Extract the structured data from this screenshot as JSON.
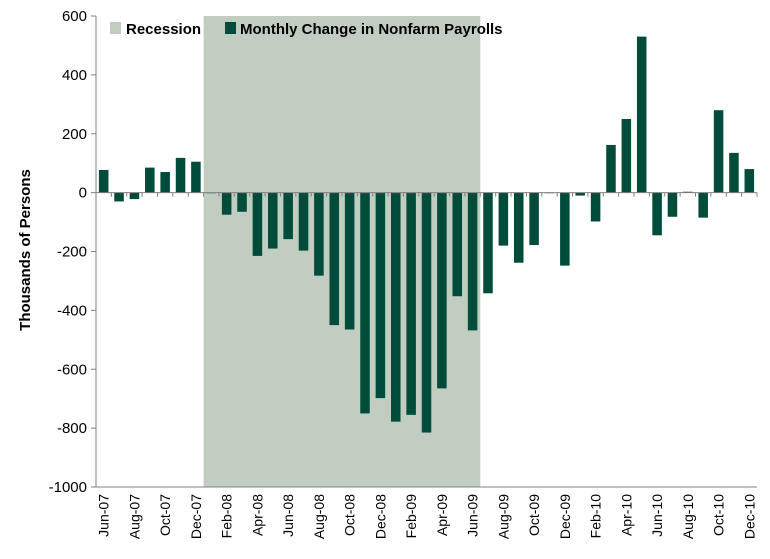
{
  "chart_data": {
    "type": "bar",
    "title": "",
    "xlabel": "",
    "ylabel": "Thousands of Persons",
    "ylim": [
      -1000,
      600
    ],
    "yticks": [
      600,
      400,
      200,
      0,
      -200,
      -400,
      -600,
      -800,
      -1000
    ],
    "yticks_labels": [
      "600",
      "400",
      "200",
      "0",
      "-200",
      "-400",
      "-600",
      "-800",
      "-1000"
    ],
    "categories": [
      "Jun-07",
      "Jul-07",
      "Aug-07",
      "Sep-07",
      "Oct-07",
      "Nov-07",
      "Dec-07",
      "Jan-08",
      "Feb-08",
      "Mar-08",
      "Apr-08",
      "May-08",
      "Jun-08",
      "Jul-08",
      "Aug-08",
      "Sep-08",
      "Oct-08",
      "Nov-08",
      "Dec-08",
      "Jan-09",
      "Feb-09",
      "Mar-09",
      "Apr-09",
      "May-09",
      "Jun-09",
      "Jul-09",
      "Aug-09",
      "Sep-09",
      "Oct-09",
      "Nov-09",
      "Dec-09",
      "Jan-10",
      "Feb-10",
      "Mar-10",
      "Apr-10",
      "May-10",
      "Jun-10",
      "Jul-10",
      "Aug-10",
      "Sep-10",
      "Oct-10",
      "Nov-10",
      "Dec-10"
    ],
    "xtick_labels": [
      "Jun-07",
      "Aug-07",
      "Oct-07",
      "Dec-07",
      "Feb-08",
      "Apr-08",
      "Jun-08",
      "Aug-08",
      "Oct-08",
      "Dec-08",
      "Feb-09",
      "Apr-09",
      "Jun-09",
      "Aug-09",
      "Oct-09",
      "Dec-09",
      "Feb-10",
      "Apr-10",
      "Jun-10",
      "Aug-10",
      "Oct-10",
      "Dec-10"
    ],
    "series": [
      {
        "name": "Monthly Change in Nonfarm Payrolls",
        "color": "#004c3a",
        "values": [
          77,
          -30,
          -22,
          85,
          70,
          118,
          105,
          0,
          -75,
          -65,
          -215,
          -190,
          -158,
          -197,
          -282,
          -450,
          -465,
          -750,
          -698,
          -778,
          -755,
          -815,
          -665,
          -352,
          -468,
          -342,
          -180,
          -238,
          -178,
          -2,
          -248,
          -10,
          -98,
          162,
          250,
          530,
          -145,
          -82,
          3,
          -85,
          280,
          135,
          80
        ]
      }
    ],
    "recession": {
      "name": "Recession",
      "color": "#c2cdc2",
      "start": "Jan-08",
      "end": "Jun-09"
    },
    "grid": false,
    "legend": "top-left"
  }
}
